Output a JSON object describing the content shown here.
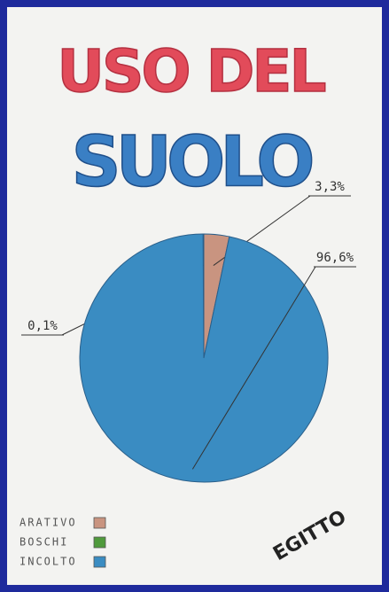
{
  "chart_data": {
    "type": "pie",
    "title": "USO DEL",
    "subtitle": "SUOLO",
    "annotation": "EGITTO",
    "categories": [
      "ARATIVO",
      "BOSCHI",
      "INCOLTO"
    ],
    "values": [
      3.3,
      0.1,
      96.6
    ],
    "value_labels": [
      "3,3%",
      "0,1%",
      "96,6%"
    ],
    "colors": [
      "#c99480",
      "#4f9a3c",
      "#3a8cc2"
    ],
    "legend": "bottom-left"
  }
}
